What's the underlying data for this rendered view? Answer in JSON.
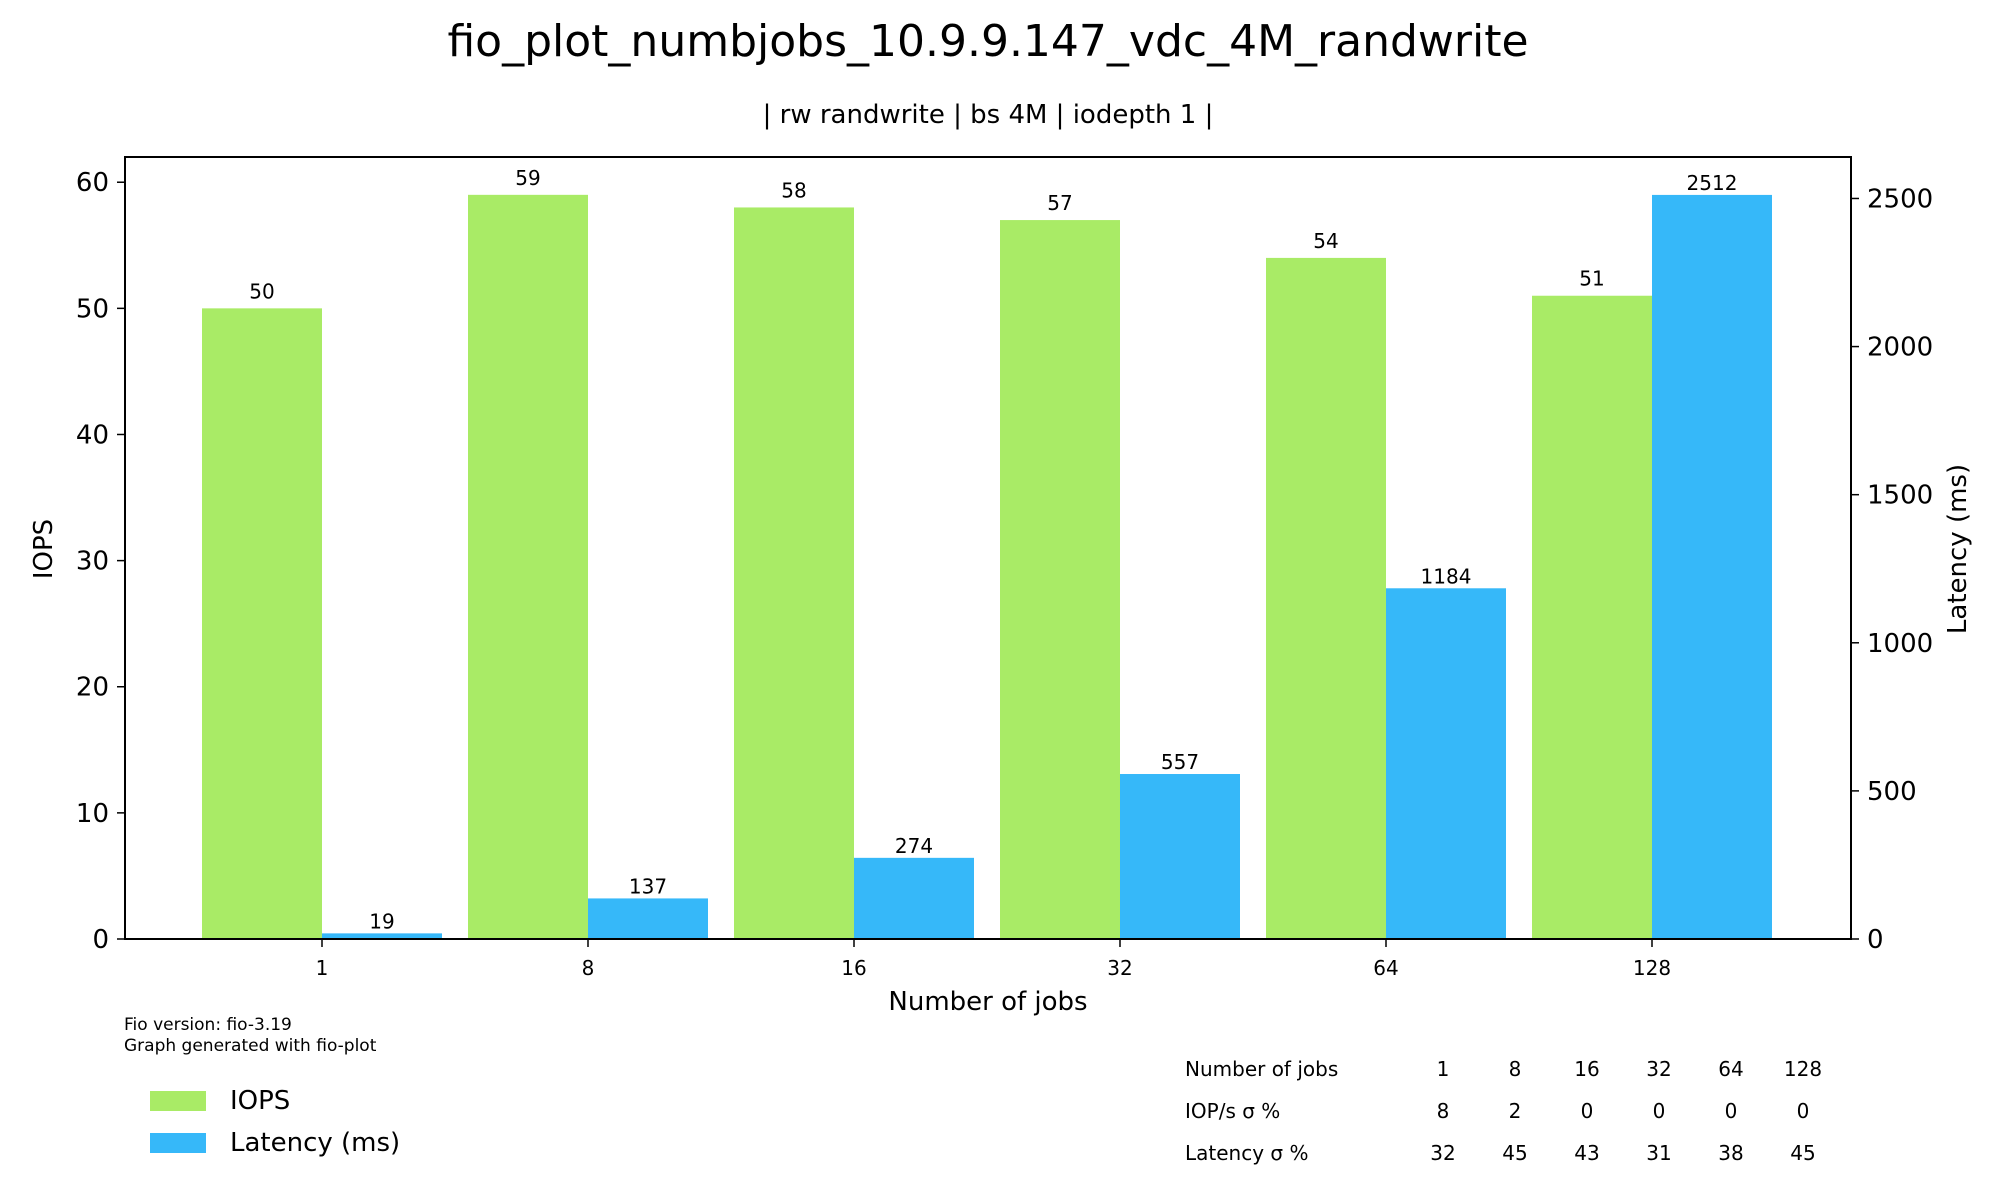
{
  "chart_data": {
    "type": "bar",
    "title": "fio_plot_numbjobs_10.9.9.147_vdc_4M_randwrite",
    "subtitle": "| rw randwrite | bs 4M | iodepth 1 |",
    "xlabel": "Number of jobs",
    "ylabel": "IOPS",
    "y2label": "Latency (ms)",
    "categories": [
      "1",
      "8",
      "16",
      "32",
      "64",
      "128"
    ],
    "ylim": [
      0,
      62
    ],
    "y2lim": [
      0,
      2640
    ],
    "yticks": [
      0,
      10,
      20,
      30,
      40,
      50,
      60
    ],
    "y2ticks": [
      0,
      500,
      1000,
      1500,
      2000,
      2500
    ],
    "grid": false,
    "legend_position": "bottom-left",
    "series": [
      {
        "name": "IOPS",
        "axis": "left",
        "color": "#a9eb66",
        "values": [
          50,
          59,
          58,
          57,
          54,
          51
        ],
        "labels": [
          "50",
          "59",
          "58",
          "57",
          "54",
          "51"
        ]
      },
      {
        "name": "Latency (ms)",
        "axis": "right",
        "color": "#36b8f9",
        "values": [
          19,
          137,
          274,
          557,
          1184,
          2512
        ],
        "labels": [
          "19",
          "137",
          "274",
          "557",
          "1184",
          "2512"
        ]
      }
    ]
  },
  "footer": {
    "line1": "Fio version: fio-3.19",
    "line2": "Graph generated with fio-plot"
  },
  "legend": {
    "items": [
      {
        "label": "IOPS",
        "color": "#a9eb66"
      },
      {
        "label": "Latency (ms)",
        "color": "#36b8f9"
      }
    ]
  },
  "stats_table": {
    "rows": [
      {
        "label": "Number of jobs",
        "values": [
          "1",
          "8",
          "16",
          "32",
          "64",
          "128"
        ]
      },
      {
        "label": "IOP/s σ %",
        "values": [
          "8",
          "2",
          "0",
          "0",
          "0",
          "0"
        ]
      },
      {
        "label": "Latency σ %",
        "values": [
          "32",
          "45",
          "43",
          "31",
          "38",
          "45"
        ]
      }
    ]
  }
}
